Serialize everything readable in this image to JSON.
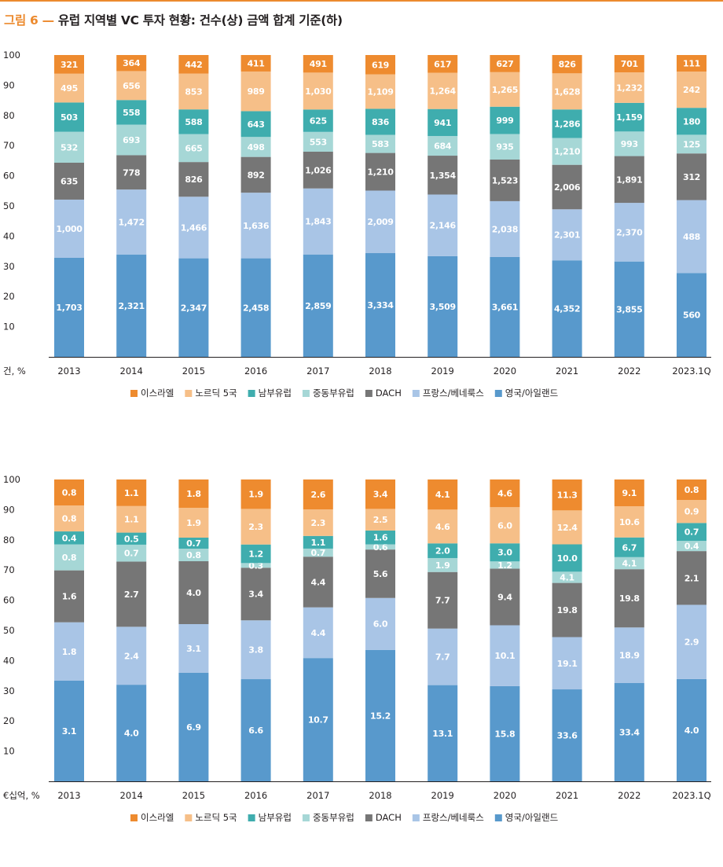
{
  "figure": {
    "label": "그림 6 —",
    "title": "유럽 지역별 VC 투자 현황: 건수(상) 금액 합계 기준(하)"
  },
  "colors": {
    "accent": "#ec8a2e",
    "series": [
      "#ee8b2f",
      "#f6bf88",
      "#3fadae",
      "#a6d7d6",
      "#767676",
      "#a9c5e6",
      "#5899cc"
    ],
    "label_dark": "#333333",
    "label_light": "#ffffff"
  },
  "chart_data": [
    {
      "type": "bar",
      "stacked": true,
      "normalized_percent": true,
      "unit_label": "건, %",
      "yticks": [
        10,
        20,
        30,
        40,
        50,
        60,
        70,
        80,
        90,
        100
      ],
      "ylim": [
        0,
        100
      ],
      "categories": [
        "2013",
        "2014",
        "2015",
        "2016",
        "2017",
        "2018",
        "2019",
        "2020",
        "2021",
        "2022",
        "2023.1Q"
      ],
      "series": [
        {
          "name": "영국/아일랜드",
          "values": [
            "1,703",
            "2,321",
            "2,347",
            "2,458",
            "2,859",
            "3,334",
            "3,509",
            "3,661",
            "4,352",
            "3,855",
            "560"
          ]
        },
        {
          "name": "프랑스/베네룩스",
          "values": [
            "1,000",
            "1,472",
            "1,466",
            "1,636",
            "1,843",
            "2,009",
            "2,146",
            "2,038",
            "2,301",
            "2,370",
            "488"
          ]
        },
        {
          "name": "DACH",
          "values": [
            "635",
            "778",
            "826",
            "892",
            "1,026",
            "1,210",
            "1,354",
            "1,523",
            "2,006",
            "1,891",
            "312"
          ]
        },
        {
          "name": "중동부유럽",
          "values": [
            "532",
            "693",
            "665",
            "498",
            "553",
            "583",
            "684",
            "935",
            "1,210",
            "993",
            "125"
          ]
        },
        {
          "name": "남부유럽",
          "values": [
            "503",
            "558",
            "588",
            "643",
            "625",
            "836",
            "941",
            "999",
            "1,286",
            "1,159",
            "180"
          ]
        },
        {
          "name": "노르딕 5국",
          "values": [
            "495",
            "656",
            "853",
            "989",
            "1,030",
            "1,109",
            "1,264",
            "1,265",
            "1,628",
            "1,232",
            "242"
          ]
        },
        {
          "name": "이스라엘",
          "values": [
            "321",
            "364",
            "442",
            "411",
            "491",
            "619",
            "617",
            "627",
            "826",
            "701",
            "111"
          ]
        }
      ],
      "legend_order": [
        "이스라엘",
        "노르딕 5국",
        "남부유럽",
        "중동부유럽",
        "DACH",
        "프랑스/베네룩스",
        "영국/아일랜드"
      ],
      "legend_position": "bottom"
    },
    {
      "type": "bar",
      "stacked": true,
      "normalized_percent": true,
      "unit_label": "€십억, %",
      "yticks": [
        10,
        20,
        30,
        40,
        50,
        60,
        70,
        80,
        90,
        100
      ],
      "ylim": [
        0,
        100
      ],
      "categories": [
        "2013",
        "2014",
        "2015",
        "2016",
        "2017",
        "2018",
        "2019",
        "2020",
        "2021",
        "2022",
        "2023.1Q"
      ],
      "series": [
        {
          "name": "영국/아일랜드",
          "values": [
            "3.1",
            "4.0",
            "6.9",
            "6.6",
            "10.7",
            "15.2",
            "13.1",
            "15.8",
            "33.6",
            "33.4",
            "4.0"
          ]
        },
        {
          "name": "프랑스/베네룩스",
          "values": [
            "1.8",
            "2.4",
            "3.1",
            "3.8",
            "4.4",
            "6.0",
            "7.7",
            "10.1",
            "19.1",
            "18.9",
            "2.9"
          ]
        },
        {
          "name": "DACH",
          "values": [
            "1.6",
            "2.7",
            "4.0",
            "3.4",
            "4.4",
            "5.6",
            "7.7",
            "9.4",
            "19.8",
            "19.8",
            "2.1"
          ]
        },
        {
          "name": "중동부유럽",
          "values": [
            "0.8",
            "0.7",
            "0.8",
            "0.3",
            "0.7",
            "0.6",
            "1.9",
            "1.2",
            "4.1",
            "4.1",
            "0.4"
          ]
        },
        {
          "name": "남부유럽",
          "values": [
            "0.4",
            "0.5",
            "0.7",
            "1.2",
            "1.1",
            "1.6",
            "2.0",
            "3.0",
            "10.0",
            "6.7",
            "0.7"
          ]
        },
        {
          "name": "노르딕 5국",
          "values": [
            "0.8",
            "1.1",
            "1.9",
            "2.3",
            "2.3",
            "2.5",
            "4.6",
            "6.0",
            "12.4",
            "10.6",
            "0.9"
          ]
        },
        {
          "name": "이스라엘",
          "values": [
            "0.8",
            "1.1",
            "1.8",
            "1.9",
            "2.6",
            "3.4",
            "4.1",
            "4.6",
            "11.3",
            "9.1",
            "0.8"
          ]
        }
      ],
      "legend_order": [
        "이스라엘",
        "노르딕 5국",
        "남부유럽",
        "중동부유럽",
        "DACH",
        "프랑스/베네룩스",
        "영국/아일랜드"
      ],
      "legend_position": "bottom"
    }
  ]
}
